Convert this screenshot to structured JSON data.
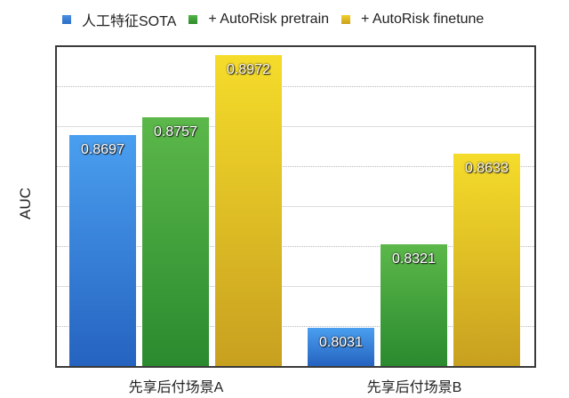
{
  "chart_data": {
    "type": "bar",
    "title": "",
    "xlabel": "",
    "ylabel": "AUC",
    "ylim": [
      0.79,
      0.9
    ],
    "grid": true,
    "legend_position": "top",
    "categories": [
      "先享后付场景A",
      "先享后付场景B"
    ],
    "series": [
      {
        "name": "人工特征SOTA",
        "color": "#2f7fd8",
        "values": [
          0.8697,
          0.8031
        ],
        "labels": [
          "0.8697",
          "0.8031"
        ]
      },
      {
        "name": "+ AutoRisk pretrain",
        "color": "#3a9a32",
        "values": [
          0.8757,
          0.8321
        ],
        "labels": [
          "0.8757",
          "0.8321"
        ]
      },
      {
        "name": "+ AutoRisk finetune",
        "color": "#e0be1e",
        "values": [
          0.8972,
          0.8633
        ],
        "labels": [
          "0.8972",
          "0.8633"
        ]
      }
    ]
  },
  "legend": [
    {
      "label": "人工特征SOTA",
      "color": "#2f7fd8"
    },
    {
      "label": "+ AutoRisk pretrain",
      "color": "#3a9a32"
    },
    {
      "label": "+ AutoRisk finetune",
      "color": "#dcb820"
    }
  ],
  "axis": {
    "ylabel": "AUC"
  },
  "categories": [
    "先享后付场景A",
    "先享后付场景B"
  ]
}
